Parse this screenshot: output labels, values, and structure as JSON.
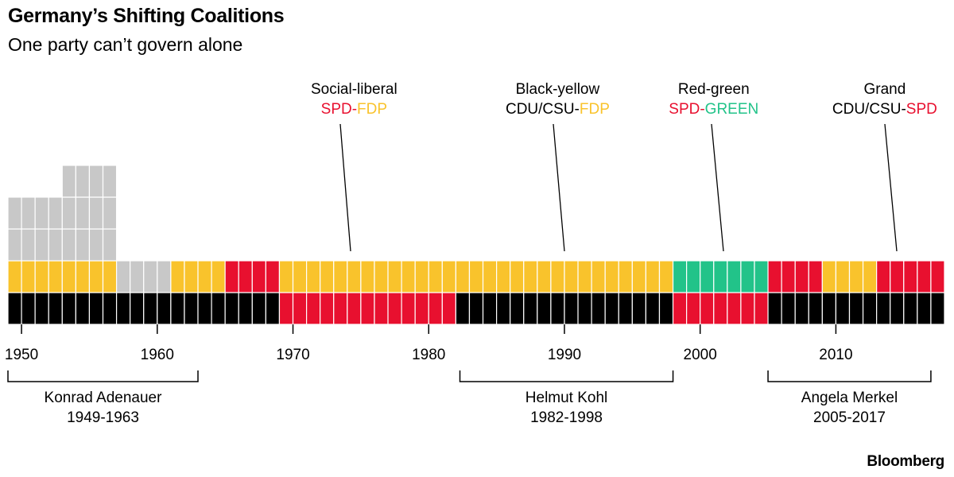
{
  "header": {
    "title": "Germany’s Shifting Coalitions",
    "subtitle": "One party can’t govern alone"
  },
  "footer": {
    "brand": "Bloomberg"
  },
  "colors": {
    "CDU/CSU": "#000000",
    "SPD": "#e8102f",
    "FDP": "#f9c32c",
    "GREEN": "#22c389",
    "Other": "#c8c8c8",
    "cell_border": "#ffffff",
    "line": "#000000"
  },
  "chart_data": {
    "type": "table",
    "title": "Germany’s Shifting Coalitions",
    "subtitle": "One party can’t govern alone",
    "x_range": [
      1949,
      2017
    ],
    "x_ticks": [
      "1950",
      "1960",
      "1970",
      "1980",
      "1990",
      "2000",
      "2010"
    ],
    "x_tick_values": [
      1950,
      1960,
      1970,
      1980,
      1990,
      2000,
      2010
    ],
    "grid": false,
    "cell_unit": "1 year",
    "coalition_periods": [
      {
        "start": 1949,
        "end": 1953,
        "parties": [
          "CDU/CSU",
          "FDP",
          "Other",
          "Other"
        ]
      },
      {
        "start": 1953,
        "end": 1957,
        "parties": [
          "CDU/CSU",
          "FDP",
          "Other",
          "Other",
          "Other"
        ]
      },
      {
        "start": 1957,
        "end": 1961,
        "parties": [
          "CDU/CSU",
          "Other"
        ]
      },
      {
        "start": 1961,
        "end": 1965,
        "parties": [
          "CDU/CSU",
          "FDP"
        ]
      },
      {
        "start": 1965,
        "end": 1969,
        "parties": [
          "CDU/CSU",
          "SPD"
        ]
      },
      {
        "start": 1969,
        "end": 1982,
        "parties": [
          "SPD",
          "FDP"
        ]
      },
      {
        "start": 1982,
        "end": 1998,
        "parties": [
          "CDU/CSU",
          "FDP"
        ]
      },
      {
        "start": 1998,
        "end": 2005,
        "parties": [
          "SPD",
          "GREEN"
        ]
      },
      {
        "start": 2005,
        "end": 2009,
        "parties": [
          "CDU/CSU",
          "SPD"
        ]
      },
      {
        "start": 2009,
        "end": 2013,
        "parties": [
          "CDU/CSU",
          "FDP"
        ]
      },
      {
        "start": 2013,
        "end": 2018,
        "parties": [
          "CDU/CSU",
          "SPD"
        ]
      }
    ],
    "annotations": [
      {
        "label": "Social-liberal",
        "parties": [
          {
            "text": "SPD",
            "party": "SPD"
          },
          {
            "text": "-",
            "party": "SPD"
          },
          {
            "text": "FDP",
            "party": "FDP"
          }
        ],
        "year": 1974.5
      },
      {
        "label": "Black-yellow",
        "parties": [
          {
            "text": "CDU/CSU-",
            "party": "text"
          },
          {
            "text": "FDP",
            "party": "FDP"
          }
        ],
        "year": 1989.5
      },
      {
        "label": "Red-green",
        "parties": [
          {
            "text": "SPD",
            "party": "SPD"
          },
          {
            "text": "-",
            "party": "SPD"
          },
          {
            "text": "GREEN",
            "party": "GREEN"
          }
        ],
        "year": 2001
      },
      {
        "label": "Grand",
        "parties": [
          {
            "text": "CDU/CSU-",
            "party": "text"
          },
          {
            "text": "SPD",
            "party": "SPD"
          }
        ],
        "year": 2013.6
      }
    ],
    "chancellors": [
      {
        "name": "Konrad Adenauer",
        "years": "1949-1963",
        "start": 1949,
        "end": 1963
      },
      {
        "name": "Helmut Kohl",
        "years": "1982-1998",
        "start": 1982.3,
        "end": 1998
      },
      {
        "name": "Angela Merkel",
        "years": "2005-2017",
        "start": 2005,
        "end": 2017
      }
    ]
  }
}
